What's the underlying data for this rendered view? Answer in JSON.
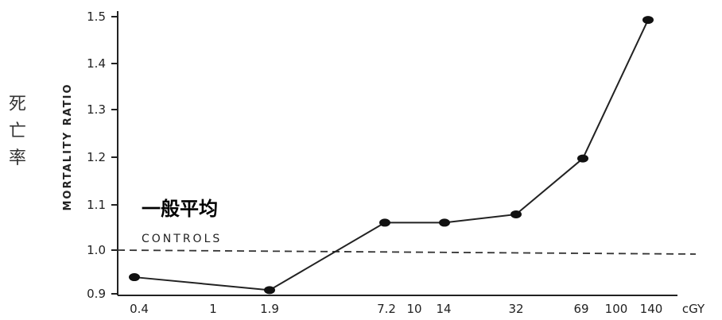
{
  "chart_data": {
    "type": "line",
    "ylabel": "MORTALITY RATIO",
    "ylabel_cn": [
      "死",
      "亡",
      "率"
    ],
    "xunit": "cGY",
    "x_tick_labels": [
      "0.4",
      "1",
      "1.9",
      "7.2",
      "10",
      "14",
      "32",
      "69",
      "100",
      "140"
    ],
    "y_tick_labels": [
      "0.9",
      "1.0",
      "1.1",
      "1.2",
      "1.3",
      "1.4",
      "1.5"
    ],
    "ylim": [
      0.9,
      1.5
    ],
    "x_scale": "log",
    "grid": false,
    "series": [
      {
        "x": [
          0.4,
          1.9,
          7.2,
          14,
          32,
          69,
          140
        ],
        "y": [
          0.936,
          0.908,
          1.054,
          1.054,
          1.072,
          1.193,
          1.493
        ]
      }
    ],
    "reference_line": {
      "y": 1.0,
      "label": "CONTROLS",
      "style": "dashed"
    },
    "annotation_cn": "一般平均"
  }
}
